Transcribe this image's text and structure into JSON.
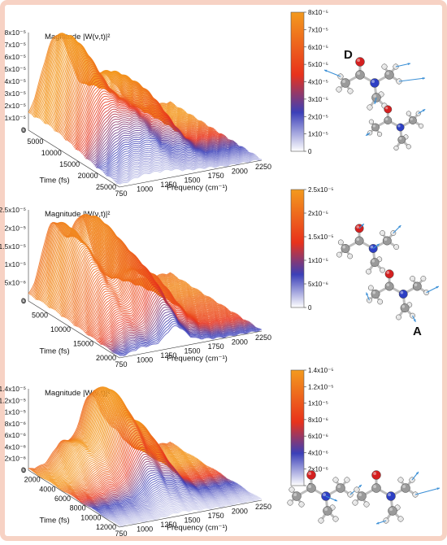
{
  "figure": {
    "border_color": "#f7d2c4",
    "colormap": [
      "#ffffff",
      "#3b3fb8",
      "#e8321c",
      "#f39a1e"
    ]
  },
  "chart_data": [
    {
      "type": "area",
      "panel": "D",
      "zlabel": "Magnitude |W(ν,t)|²",
      "xlabel": "Frequency (cm⁻¹)",
      "ylabel": "Time (fs)",
      "zticks": [
        "8x10⁻⁵",
        "7x10⁻⁵",
        "6x10⁻⁵",
        "5x10⁻⁵",
        "4x10⁻⁵",
        "3x10⁻⁵",
        "2x10⁻⁵",
        "1x10⁻⁵",
        "0"
      ],
      "xticks": [
        "750",
        "1000",
        "1250",
        "1500",
        "1750",
        "2000",
        "2250"
      ],
      "yticks": [
        "0",
        "5000",
        "10000",
        "15000",
        "20000",
        "25000"
      ],
      "colorbar_ticks": [
        "8x10⁻⁵",
        "7x10⁻⁵",
        "6x10⁻⁵",
        "5x10⁻⁵",
        "4x10⁻⁵",
        "3x10⁻⁵",
        "2x10⁻⁵",
        "1x10⁻⁵",
        "0"
      ],
      "zlim": [
        0,
        8e-05
      ],
      "xlim": [
        750,
        2250
      ],
      "ylim": [
        0,
        25000
      ],
      "peaks": [
        {
          "freq": 1050,
          "time": 3500,
          "magnitude": 7.8e-05,
          "width": 160,
          "duration": 14000
        },
        {
          "freq": 1500,
          "time": 5000,
          "magnitude": 4e-05,
          "width": 120,
          "duration": 12000
        },
        {
          "freq": 1700,
          "time": 8000,
          "magnitude": 2.2e-05,
          "width": 90,
          "duration": 10000
        },
        {
          "freq": 1300,
          "time": 15000,
          "magnitude": 1.8e-05,
          "width": 100,
          "duration": 8000
        }
      ]
    },
    {
      "type": "area",
      "panel": "A",
      "zlabel": "Magnitude |W(ν,t)|²",
      "xlabel": "Frequency (cm⁻¹)",
      "ylabel": "Time (fs)",
      "zticks": [
        "2.5x10⁻⁵",
        "2x10⁻⁵",
        "1.5x10⁻⁵",
        "1x10⁻⁵",
        "5x10⁻⁶",
        "0"
      ],
      "xticks": [
        "750",
        "1000",
        "1250",
        "1500",
        "1750",
        "2000",
        "2250"
      ],
      "yticks": [
        "0",
        "5000",
        "10000",
        "15000",
        "20000"
      ],
      "colorbar_ticks": [
        "2.5x10⁻⁵",
        "2x10⁻⁵",
        "1.5x10⁻⁵",
        "1x10⁻⁵",
        "5x10⁻⁶",
        "0"
      ],
      "zlim": [
        0,
        2.5e-05
      ],
      "xlim": [
        750,
        2250
      ],
      "ylim": [
        0,
        20000
      ],
      "peaks": [
        {
          "freq": 1000,
          "time": 3000,
          "magnitude": 2.1e-05,
          "width": 110,
          "duration": 11000
        },
        {
          "freq": 1300,
          "time": 3500,
          "magnitude": 2.2e-05,
          "width": 110,
          "duration": 11000
        },
        {
          "freq": 1600,
          "time": 9000,
          "magnitude": 1e-05,
          "width": 110,
          "duration": 7000
        },
        {
          "freq": 1350,
          "time": 15000,
          "magnitude": 8e-06,
          "width": 100,
          "duration": 6000
        }
      ]
    },
    {
      "type": "area",
      "panel": "",
      "zlabel": "Magnitude |W(ν,t)|²",
      "xlabel": "Frequency (cm⁻¹)",
      "ylabel": "Time (fs)",
      "zticks": [
        "1.4x10⁻⁵",
        "1.2x10⁻⁵",
        "1x10⁻⁵",
        "8x10⁻⁶",
        "6x10⁻⁶",
        "4x10⁻⁶",
        "2x10⁻⁶",
        "0"
      ],
      "xticks": [
        "750",
        "1000",
        "1250",
        "1500",
        "1750",
        "2000",
        "2250"
      ],
      "yticks": [
        "0",
        "2000",
        "4000",
        "6000",
        "8000",
        "10000",
        "12000"
      ],
      "colorbar_ticks": [
        "1.4x10⁻⁵",
        "1.2x10⁻⁵",
        "1x10⁻⁵",
        "8x10⁻⁶",
        "6x10⁻⁶",
        "4x10⁻⁶",
        "2x10⁻⁶",
        "0"
      ],
      "zlim": [
        0,
        1.4e-05
      ],
      "xlim": [
        750,
        2250
      ],
      "ylim": [
        0,
        12000
      ],
      "peaks": [
        {
          "freq": 1400,
          "time": 2500,
          "magnitude": 1.35e-05,
          "width": 110,
          "duration": 5500
        },
        {
          "freq": 1650,
          "time": 3500,
          "magnitude": 7e-06,
          "width": 100,
          "duration": 4500
        },
        {
          "freq": 1100,
          "time": 2000,
          "magnitude": 4.5e-06,
          "width": 90,
          "duration": 4000
        }
      ]
    }
  ],
  "molecule_colors": {
    "carbon": "#9a9a9a",
    "hydrogen": "#e6e6e6",
    "oxygen": "#d42020",
    "nitrogen": "#2d3fc4",
    "vector": "#3a8fd6"
  }
}
